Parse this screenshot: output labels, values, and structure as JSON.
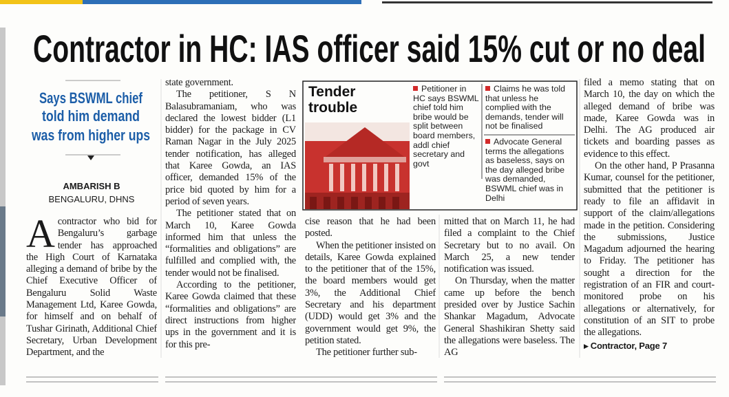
{
  "headline": "Contractor in HC: IAS officer said 15% cut or no deal",
  "subhead": {
    "lines": [
      "Says BSWML chief",
      "told him demand",
      "was from higher ups"
    ]
  },
  "byline": {
    "author": "AMBARISH B",
    "dateline": "BENGALURU, DHNS"
  },
  "columns": [
    {
      "drop_cap": "A",
      "paragraphs": [
        "contractor who bid for Bengaluru’s garbage tender has approached the High Court of Karnataka alleging a demand of bribe by the Chief Executive Officer of Bengaluru Solid Waste Management Ltd, Karee Gowda, for himself and on behalf of Tushar Girinath, Additional Chief Secretary, Urban Development Department, and the"
      ]
    },
    {
      "paragraphs": [
        "state government.",
        "The petitioner, S N Balasubramaniam, who was declared the lowest bidder (L1 bidder) for the package in CV Raman Nagar in the July 2025 tender notification, has alleged that Karee Gowda, an IAS officer, demanded 15% of the price bid quoted by him for a period of seven years.",
        "The petitioner stated that on March 10, Karee Gowda informed him that unless the “formalities and obligations” are fulfilled and complied with, the tender would not be finalised.",
        "According to the petitioner, Karee Gowda claimed that these “formalities and obligations” are direct instructions from higher ups in the government and it is for this pre-"
      ]
    },
    {
      "paragraphs": [
        "cise reason that he had been posted.",
        "When the petitioner insisted on details, Karee Gowda explained to the petitioner that of the 15%, the board members would get 3%, the Additional Chief Secretary and his department (UDD) would get 3% and the government would get 9%, the petition stated.",
        "The petitioner further sub-"
      ]
    },
    {
      "paragraphs": [
        "mitted that on March 11, he had filed a complaint to the Chief Secretary but to no avail. On March 25, a new tender notification was issued.",
        "On Thursday, when the matter came up before the bench presided over by Justice Sachin Shankar Magadum, Advocate General Shashikiran Shetty said the allegations were baseless. The AG"
      ]
    },
    {
      "paragraphs": [
        "filed a memo stating that on March 10, the day on which the alleged demand of bribe was made, Karee Gowda was in Delhi. The AG produced air tickets and boarding passes as evidence to this effect.",
        "On the other hand, P Prasanna Kumar, counsel for the petitioner, submitted that the petitioner is ready to file an affidavit in support of the claim/allegations made in the petition. Considering the submissions, Justice Magadum adjourned the hearing to Friday. The petitioner has sought a direction for the registration of an FIR and court-monitored probe on his allegations or alternatively, for constitution of an SIT to probe the allegations."
      ],
      "jump": "Contractor, Page 7"
    }
  ],
  "box": {
    "title": "Tender trouble",
    "bullets": [
      "Petitioner in HC says BSWML chief told him bribe would be split between board members, addl chief secretary and govt",
      "Claims he was told that unless he complied with the demands, tender will not be finalised",
      "Advocate General terms the allegations as baseless, says on the day alleged bribe was demanded, BSWML chief was in Delhi"
    ]
  }
}
